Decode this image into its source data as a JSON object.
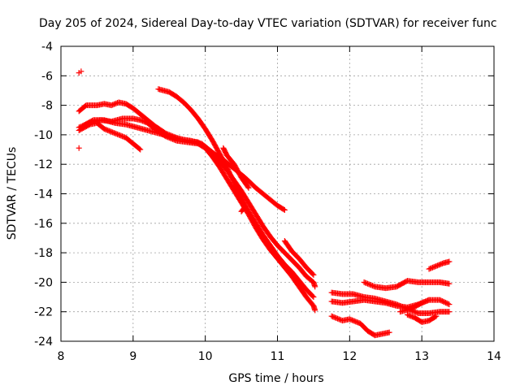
{
  "chart_data": {
    "type": "scatter",
    "title": "Day 205 of 2024, Sidereal Day-to-day VTEC variation (SDTVAR) for receiver func",
    "xlabel": "GPS time / hours",
    "ylabel": "SDTVAR / TECUs",
    "xlim": [
      8,
      14
    ],
    "ylim": [
      -24,
      -4
    ],
    "xticks": [
      8,
      9,
      10,
      11,
      12,
      13,
      14
    ],
    "yticks": [
      -24,
      -22,
      -20,
      -18,
      -16,
      -14,
      -12,
      -10,
      -8,
      -6,
      -4
    ],
    "grid": true,
    "marker": "+",
    "color": "#ff0000",
    "series": [
      {
        "name": "arc-1",
        "points": [
          [
            8.25,
            -8.4
          ],
          [
            8.35,
            -8.0
          ],
          [
            8.5,
            -8.0
          ],
          [
            8.6,
            -7.9
          ],
          [
            8.7,
            -8.0
          ],
          [
            8.8,
            -7.8
          ],
          [
            8.9,
            -7.9
          ],
          [
            9.0,
            -8.2
          ],
          [
            9.1,
            -8.6
          ],
          [
            9.2,
            -9.0
          ],
          [
            9.3,
            -9.4
          ],
          [
            9.45,
            -9.9
          ],
          [
            9.6,
            -10.2
          ],
          [
            9.75,
            -10.4
          ],
          [
            9.9,
            -10.5
          ],
          [
            10.0,
            -10.9
          ],
          [
            10.1,
            -11.5
          ],
          [
            10.2,
            -12.2
          ],
          [
            10.3,
            -13.0
          ],
          [
            10.4,
            -13.8
          ],
          [
            10.5,
            -14.6
          ],
          [
            10.6,
            -15.4
          ],
          [
            10.7,
            -16.3
          ],
          [
            10.8,
            -17.1
          ],
          [
            10.9,
            -17.8
          ],
          [
            11.0,
            -18.4
          ],
          [
            11.1,
            -19.0
          ],
          [
            11.2,
            -19.6
          ],
          [
            11.3,
            -20.3
          ],
          [
            11.4,
            -21.0
          ],
          [
            11.5,
            -21.6
          ],
          [
            11.52,
            -21.9
          ]
        ]
      },
      {
        "name": "arc-2",
        "points": [
          [
            8.25,
            -9.5
          ],
          [
            8.4,
            -9.2
          ],
          [
            8.55,
            -9.0
          ],
          [
            8.7,
            -9.1
          ],
          [
            8.85,
            -8.9
          ],
          [
            9.0,
            -8.9
          ],
          [
            9.1,
            -9.0
          ],
          [
            9.2,
            -9.2
          ],
          [
            9.3,
            -9.6
          ],
          [
            9.45,
            -10.1
          ],
          [
            9.6,
            -10.4
          ],
          [
            9.75,
            -10.5
          ],
          [
            9.9,
            -10.6
          ],
          [
            10.0,
            -10.9
          ],
          [
            10.1,
            -11.2
          ],
          [
            10.25,
            -11.7
          ],
          [
            10.4,
            -12.3
          ],
          [
            10.55,
            -12.9
          ],
          [
            10.7,
            -13.6
          ],
          [
            10.85,
            -14.2
          ],
          [
            11.0,
            -14.8
          ],
          [
            11.1,
            -15.1
          ]
        ]
      },
      {
        "name": "arc-3",
        "points": [
          [
            8.25,
            -9.7
          ],
          [
            8.4,
            -9.3
          ],
          [
            8.5,
            -9.2
          ],
          [
            8.6,
            -9.6
          ],
          [
            8.75,
            -9.9
          ],
          [
            8.9,
            -10.2
          ],
          [
            9.0,
            -10.6
          ],
          [
            9.1,
            -11.0
          ]
        ]
      },
      {
        "name": "arc-4",
        "points": [
          [
            8.3,
            -9.4
          ],
          [
            8.45,
            -9.0
          ],
          [
            8.6,
            -9.0
          ],
          [
            8.75,
            -9.2
          ],
          [
            8.9,
            -9.3
          ],
          [
            9.05,
            -9.5
          ],
          [
            9.2,
            -9.7
          ],
          [
            9.35,
            -9.9
          ],
          [
            9.5,
            -10.1
          ],
          [
            9.65,
            -10.3
          ],
          [
            9.8,
            -10.4
          ],
          [
            9.95,
            -10.6
          ],
          [
            10.1,
            -11.2
          ],
          [
            10.2,
            -11.8
          ],
          [
            10.3,
            -12.4
          ],
          [
            10.4,
            -13.1
          ],
          [
            10.5,
            -13.8
          ],
          [
            10.6,
            -14.6
          ],
          [
            10.7,
            -15.4
          ],
          [
            10.8,
            -16.2
          ],
          [
            10.9,
            -16.9
          ],
          [
            11.0,
            -17.5
          ],
          [
            11.1,
            -18.0
          ],
          [
            11.2,
            -18.5
          ],
          [
            11.3,
            -19.0
          ],
          [
            11.4,
            -19.6
          ],
          [
            11.5,
            -20.0
          ],
          [
            11.52,
            -20.3
          ]
        ]
      },
      {
        "name": "arc-5",
        "points": [
          [
            9.35,
            -6.9
          ],
          [
            9.5,
            -7.1
          ],
          [
            9.6,
            -7.4
          ],
          [
            9.7,
            -7.8
          ],
          [
            9.8,
            -8.3
          ],
          [
            9.9,
            -8.9
          ],
          [
            10.0,
            -9.6
          ],
          [
            10.1,
            -10.4
          ],
          [
            10.2,
            -11.3
          ],
          [
            10.3,
            -12.2
          ],
          [
            10.4,
            -13.3
          ],
          [
            10.5,
            -14.3
          ],
          [
            10.6,
            -15.2
          ],
          [
            10.7,
            -16.0
          ],
          [
            10.8,
            -16.8
          ],
          [
            10.9,
            -17.5
          ],
          [
            11.0,
            -18.2
          ],
          [
            11.1,
            -18.8
          ],
          [
            11.2,
            -19.3
          ],
          [
            11.3,
            -19.9
          ],
          [
            11.4,
            -20.5
          ],
          [
            11.5,
            -21.0
          ]
        ]
      },
      {
        "name": "arc-6",
        "points": [
          [
            10.25,
            -10.9
          ],
          [
            10.3,
            -11.4
          ],
          [
            10.4,
            -12.0
          ],
          [
            10.5,
            -12.9
          ],
          [
            10.6,
            -13.6
          ]
        ]
      },
      {
        "name": "arc-7",
        "points": [
          [
            10.5,
            -15.2
          ],
          [
            10.55,
            -14.9
          ]
        ]
      },
      {
        "name": "arc-8",
        "points": [
          [
            11.1,
            -17.2
          ],
          [
            11.2,
            -17.9
          ],
          [
            11.3,
            -18.4
          ],
          [
            11.4,
            -19.0
          ],
          [
            11.5,
            -19.5
          ]
        ]
      },
      {
        "name": "arc-9",
        "points": [
          [
            11.75,
            -20.7
          ],
          [
            11.9,
            -20.8
          ],
          [
            12.05,
            -20.8
          ],
          [
            12.2,
            -21.0
          ],
          [
            12.35,
            -21.1
          ],
          [
            12.5,
            -21.3
          ],
          [
            12.65,
            -21.5
          ],
          [
            12.8,
            -21.8
          ],
          [
            12.95,
            -22.1
          ],
          [
            13.1,
            -22.1
          ],
          [
            13.25,
            -22.0
          ],
          [
            13.38,
            -22.0
          ]
        ]
      },
      {
        "name": "arc-10",
        "points": [
          [
            11.75,
            -22.3
          ],
          [
            11.9,
            -22.6
          ],
          [
            12.0,
            -22.5
          ],
          [
            12.15,
            -22.8
          ],
          [
            12.25,
            -23.3
          ],
          [
            12.35,
            -23.6
          ],
          [
            12.45,
            -23.5
          ],
          [
            12.55,
            -23.4
          ]
        ]
      },
      {
        "name": "arc-11",
        "points": [
          [
            11.75,
            -21.3
          ],
          [
            11.9,
            -21.4
          ],
          [
            12.05,
            -21.3
          ],
          [
            12.2,
            -21.2
          ],
          [
            12.35,
            -21.3
          ],
          [
            12.5,
            -21.4
          ],
          [
            12.65,
            -21.6
          ],
          [
            12.8,
            -21.7
          ],
          [
            12.95,
            -21.5
          ],
          [
            13.1,
            -21.2
          ],
          [
            13.25,
            -21.2
          ],
          [
            13.38,
            -21.5
          ]
        ]
      },
      {
        "name": "arc-12",
        "points": [
          [
            12.2,
            -20.0
          ],
          [
            12.35,
            -20.3
          ],
          [
            12.5,
            -20.4
          ],
          [
            12.65,
            -20.3
          ],
          [
            12.8,
            -19.9
          ],
          [
            12.95,
            -20.0
          ],
          [
            13.1,
            -20.0
          ],
          [
            13.25,
            -20.0
          ],
          [
            13.38,
            -20.1
          ]
        ]
      },
      {
        "name": "arc-13",
        "points": [
          [
            12.7,
            -22.0
          ],
          [
            12.85,
            -21.8
          ],
          [
            13.0,
            -21.4
          ],
          [
            13.1,
            -21.2
          ]
        ]
      },
      {
        "name": "arc-14",
        "points": [
          [
            12.8,
            -22.2
          ],
          [
            12.9,
            -22.4
          ],
          [
            13.0,
            -22.7
          ],
          [
            13.1,
            -22.6
          ],
          [
            13.2,
            -22.3
          ]
        ]
      },
      {
        "name": "arc-15",
        "points": [
          [
            13.1,
            -19.1
          ],
          [
            13.2,
            -18.9
          ],
          [
            13.3,
            -18.7
          ],
          [
            13.38,
            -18.6
          ]
        ]
      },
      {
        "name": "outliers",
        "points": [
          [
            8.25,
            -5.8
          ],
          [
            8.28,
            -5.7
          ],
          [
            8.25,
            -10.9
          ]
        ]
      }
    ]
  }
}
